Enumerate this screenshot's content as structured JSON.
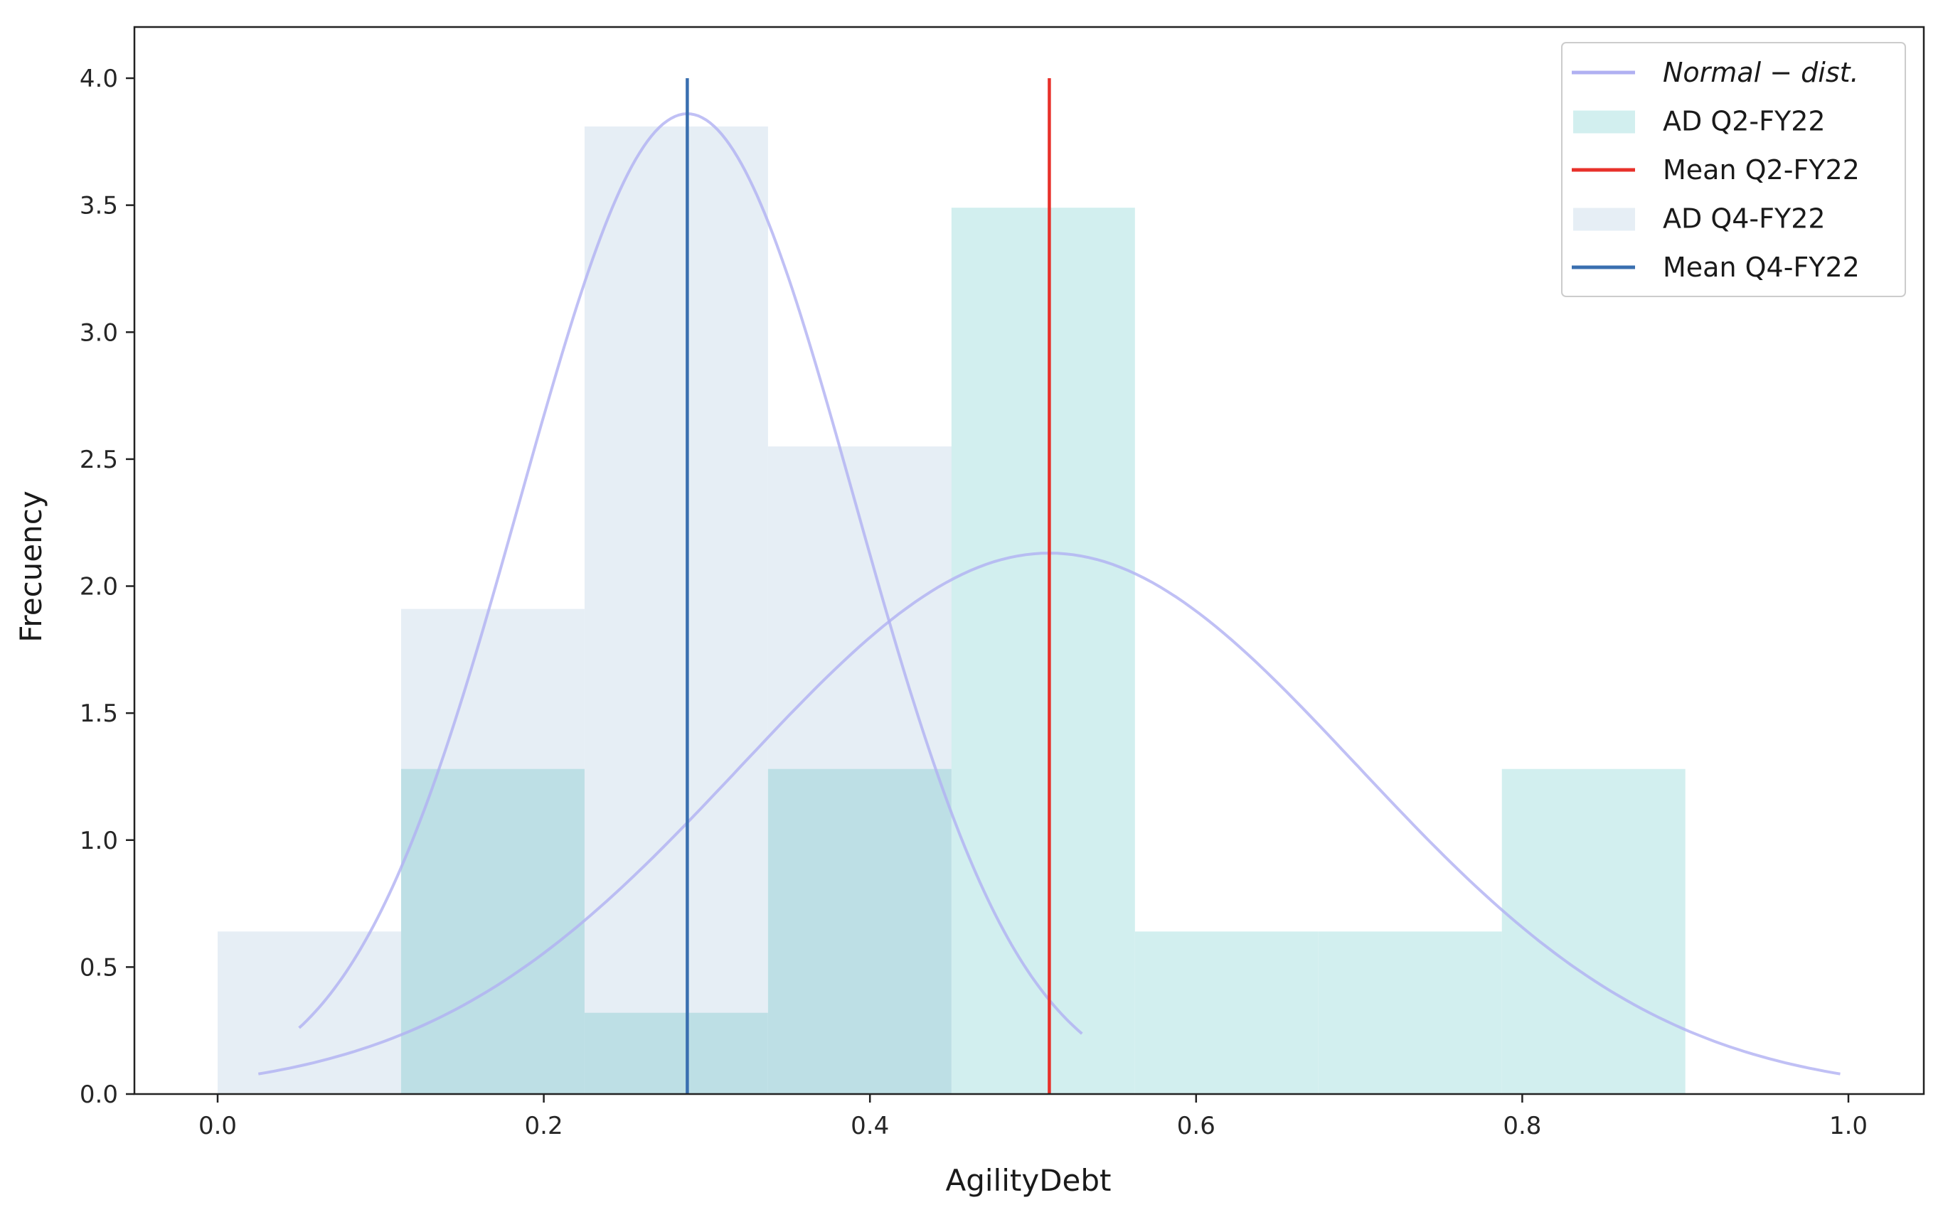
{
  "chart_data": {
    "type": "histogram",
    "title": "",
    "xlabel": "AgilityDebt",
    "ylabel": "Frecuency",
    "xlim": [
      -0.05,
      1.05
    ],
    "ylim": [
      0,
      4.2
    ],
    "xticks": [
      "0.0",
      "0.2",
      "0.4",
      "0.6",
      "0.8",
      "1.0"
    ],
    "yticks": [
      "0.0",
      "0.5",
      "1.0",
      "1.5",
      "2.0",
      "2.5",
      "3.0",
      "3.5",
      "4.0"
    ],
    "grid": false,
    "legend_position": "top-right",
    "series": [
      {
        "name": "AD Q4-FY22",
        "kind": "hist",
        "color": "#e6eef5",
        "bins": [
          {
            "x0": 0.0,
            "x1": 0.1125,
            "value": 0.64
          },
          {
            "x0": 0.1125,
            "x1": 0.225,
            "value": 1.91
          },
          {
            "x0": 0.225,
            "x1": 0.3375,
            "value": 3.81
          },
          {
            "x0": 0.3375,
            "x1": 0.45,
            "value": 2.55
          }
        ]
      },
      {
        "name": "AD Q2-FY22",
        "kind": "hist",
        "color": "#d2efef",
        "bins": [
          {
            "x0": 0.1125,
            "x1": 0.225,
            "value": 1.28
          },
          {
            "x0": 0.225,
            "x1": 0.3375,
            "value": 0.32
          },
          {
            "x0": 0.3375,
            "x1": 0.45,
            "value": 1.28
          },
          {
            "x0": 0.45,
            "x1": 0.5625,
            "value": 3.49
          },
          {
            "x0": 0.5625,
            "x1": 0.675,
            "value": 0.64
          },
          {
            "x0": 0.675,
            "x1": 0.7875,
            "value": 0.64
          },
          {
            "x0": 0.7875,
            "x1": 0.9,
            "value": 1.28
          }
        ]
      },
      {
        "name": "Normal − dist.",
        "kind": "normal-curve",
        "color": "#b0b0f2",
        "curves": [
          {
            "mean": 0.288,
            "std": 0.1025,
            "peak": 3.86,
            "x_range": [
              0.05,
              0.53
            ]
          },
          {
            "mean": 0.51,
            "std": 0.189,
            "peak": 2.13,
            "x_range": [
              0.025,
              0.995
            ]
          }
        ]
      },
      {
        "name": "Mean Q2-FY22",
        "kind": "vline",
        "color": "#e8302a",
        "x": 0.51,
        "y_range": [
          0,
          4.0
        ]
      },
      {
        "name": "Mean Q4-FY22",
        "kind": "vline",
        "color": "#3a6fb0",
        "x": 0.288,
        "y_range": [
          0,
          4.0
        ]
      }
    ],
    "legend": [
      {
        "label": "Normal − dist.",
        "type": "line",
        "color": "#b0b0f2",
        "italic": true
      },
      {
        "label": "AD Q2-FY22",
        "type": "patch",
        "color": "#d2efef"
      },
      {
        "label": "Mean Q2-FY22",
        "type": "line",
        "color": "#e8302a"
      },
      {
        "label": "AD Q4-FY22",
        "type": "patch",
        "color": "#e6eef5"
      },
      {
        "label": "Mean Q4-FY22",
        "type": "line",
        "color": "#3a6fb0"
      }
    ]
  }
}
